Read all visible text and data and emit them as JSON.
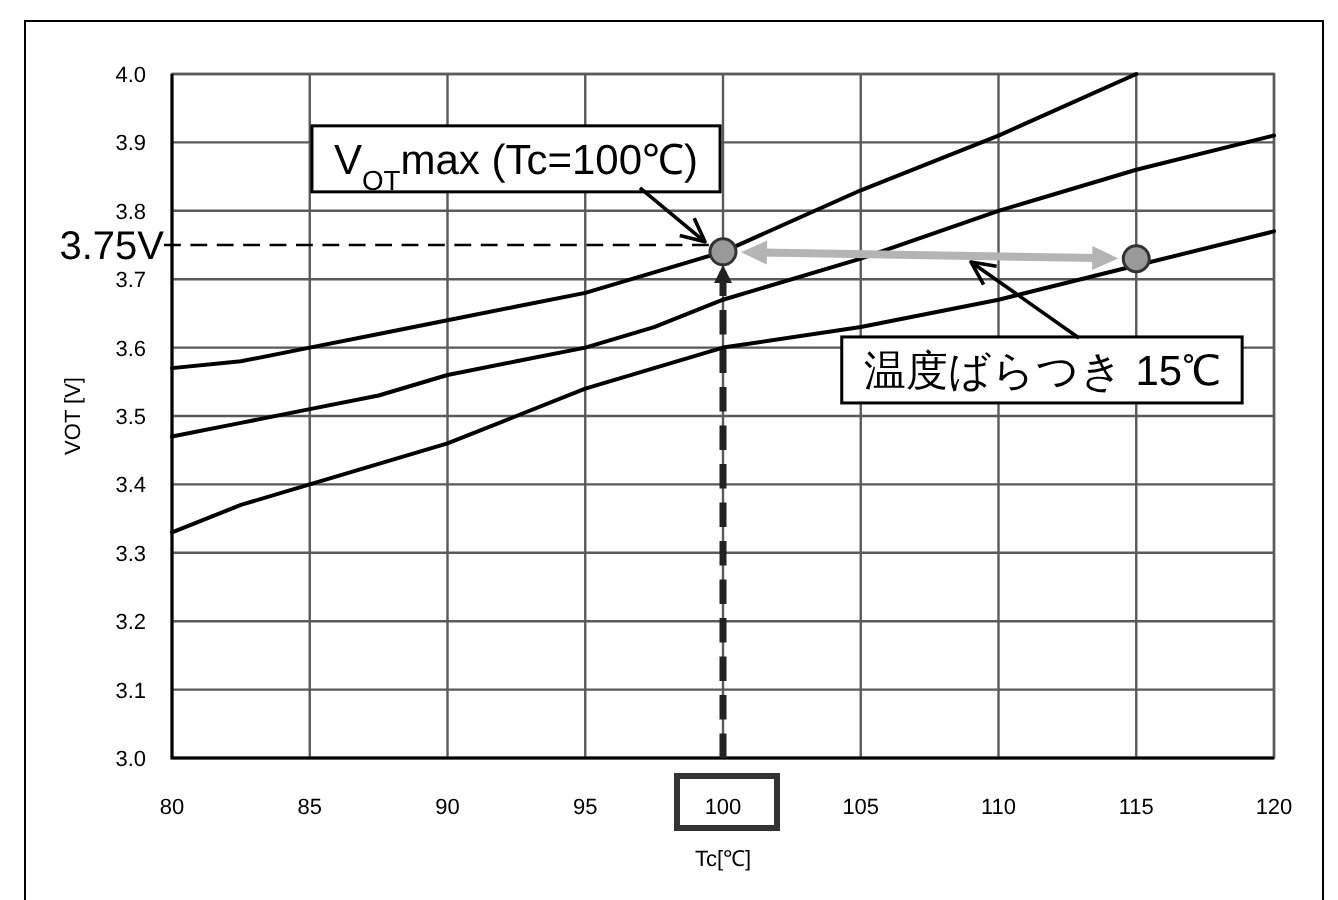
{
  "chart_data": {
    "type": "line",
    "xlabel": "Tc[℃]",
    "ylabel": "VOT [V]",
    "xlim": [
      80,
      120
    ],
    "xticks": [
      80,
      85,
      90,
      95,
      100,
      105,
      110,
      115,
      120
    ],
    "ylim": [
      3,
      4
    ],
    "yticks": [
      {
        "value": 3,
        "label": "3.0"
      },
      3.1,
      3.2,
      3.3,
      3.4,
      3.5,
      3.6,
      3.7,
      3.8,
      3.9,
      {
        "value": 4,
        "label": "4.0"
      }
    ],
    "grid": true,
    "series": [
      {
        "color": "#000000",
        "x": [
          80,
          82.5,
          85,
          87.5,
          90,
          92.5,
          95,
          97.5,
          100,
          105,
          110,
          115
        ],
        "values": [
          3.57,
          3.58,
          3.6,
          3.62,
          3.64,
          3.66,
          3.68,
          3.71,
          3.74,
          3.83,
          3.91,
          4.0
        ]
      },
      {
        "color": "#000000",
        "x": [
          80,
          82.5,
          85,
          87.5,
          90,
          92.5,
          95,
          97.5,
          100,
          105,
          110,
          115,
          120
        ],
        "values": [
          3.47,
          3.49,
          3.51,
          3.53,
          3.56,
          3.58,
          3.6,
          3.63,
          3.67,
          3.73,
          3.8,
          3.86,
          3.91
        ]
      },
      {
        "color": "#000000",
        "x": [
          80,
          82.5,
          85,
          87.5,
          90,
          92.5,
          95,
          97.5,
          100,
          105,
          110,
          115,
          120
        ],
        "values": [
          3.33,
          3.37,
          3.4,
          3.43,
          3.46,
          3.5,
          3.54,
          3.57,
          3.6,
          3.63,
          3.67,
          3.72,
          3.77
        ]
      },
      {
        "type": "scatter",
        "marker": "circle",
        "color": "#999999",
        "x": [
          100,
          115
        ],
        "values": [
          3.74,
          3.73
        ]
      }
    ],
    "ref_lines": [
      {
        "axis": "y",
        "value": 3.75,
        "label": "3.75V",
        "line_style": "dashed",
        "color": "#000000"
      },
      {
        "axis": "x",
        "value": 100,
        "line_style": "dashed",
        "color": "#222222"
      }
    ],
    "annotations": [
      {
        "text": "V$_{OT}$max (Tc=100℃)",
        "x": 100,
        "y": 3.74
      },
      "温度ばらつき 15℃"
    ]
  }
}
